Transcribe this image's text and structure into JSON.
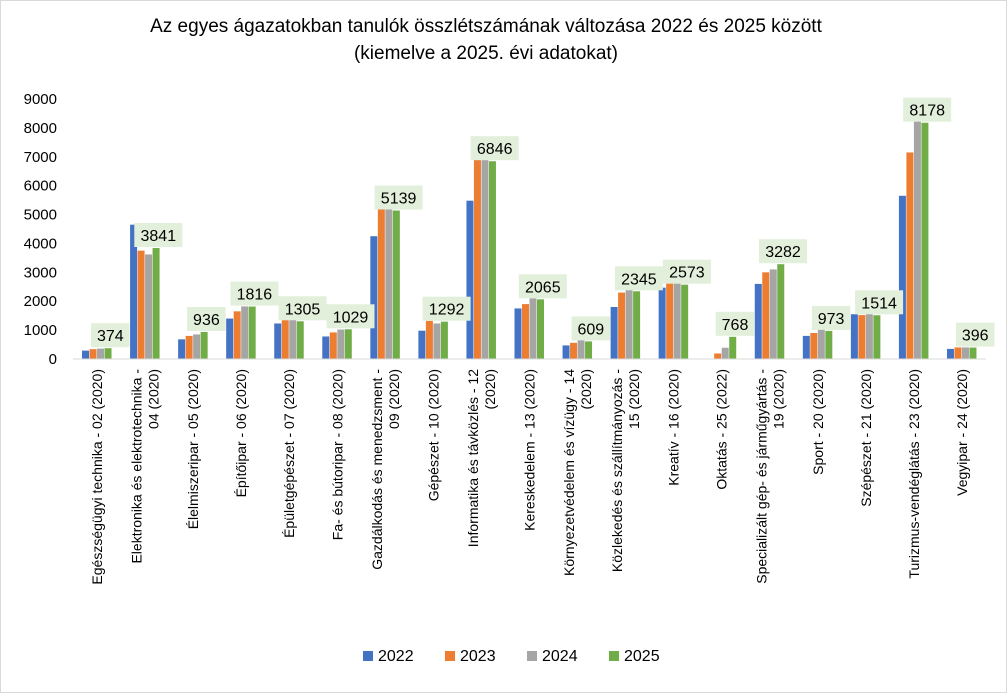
{
  "chart_data": {
    "type": "bar",
    "title": "Az egyes ágazatokban tanulók összlétszámának változása 2022 és 2025 között",
    "subtitle": "(kiemelve a 2025. évi adatokat)",
    "xlabel": "",
    "ylabel": "",
    "ylim": [
      0,
      9000
    ],
    "yticks": [
      "0",
      "1000",
      "2000",
      "3000",
      "4000",
      "5000",
      "6000",
      "7000",
      "8000",
      "9000"
    ],
    "grid": false,
    "legend_position": "bottom",
    "categories": [
      [
        "Egészségügyi technika - 02 (2020)"
      ],
      [
        "Elektronika és elektrotechnika -",
        "04 (2020)"
      ],
      [
        "Élelmiszeripar - 05 (2020)"
      ],
      [
        "Építőipar - 06 (2020)"
      ],
      [
        "Épületgépészet - 07 (2020)"
      ],
      [
        "Fa- és bútoripar - 08 (2020)"
      ],
      [
        "Gazdálkodás és menedzsment -",
        "09 (2020)"
      ],
      [
        "Gépészet - 10 (2020)"
      ],
      [
        "Informatika és távközlés - 12",
        "(2020)"
      ],
      [
        "Kereskedelem - 13 (2020)"
      ],
      [
        "Környezetvédelem és vízügy - 14",
        "(2020)"
      ],
      [
        "Közlekedés és szállítmányozás -",
        "15 (2020)"
      ],
      [
        "Kreatív - 16 (2020)"
      ],
      [
        "Oktatás - 25 (2022)"
      ],
      [
        "Specializált gép- és járműgyártás -",
        "19 (2020)"
      ],
      [
        "Sport - 20 (2020)"
      ],
      [
        "Szépészet - 21 (2020)"
      ],
      [
        "Turizmus-vendéglátás - 23 (2020)"
      ],
      [
        "Vegyipar - 24 (2020)"
      ]
    ],
    "series": [
      {
        "name": "2022",
        "color": "#4472C4",
        "values": [
          290,
          4650,
          680,
          1400,
          1230,
          780,
          4250,
          980,
          5480,
          1750,
          470,
          1800,
          2470,
          0,
          2600,
          800,
          1550,
          5650,
          350
        ]
      },
      {
        "name": "2023",
        "color": "#ED7D31",
        "values": [
          340,
          3750,
          800,
          1650,
          1420,
          920,
          5250,
          1320,
          7050,
          1900,
          560,
          2300,
          2800,
          190,
          3000,
          900,
          1520,
          7150,
          400
        ]
      },
      {
        "name": "2024",
        "color": "#A5A5A5",
        "values": [
          360,
          3620,
          850,
          1820,
          1380,
          1020,
          5350,
          1230,
          7050,
          2100,
          730,
          2420,
          2820,
          390,
          3100,
          1070,
          1720,
          8300,
          400
        ]
      },
      {
        "name": "2025",
        "color": "#70AD47",
        "values": [
          374,
          3841,
          936,
          1816,
          1305,
          1029,
          5139,
          1292,
          6846,
          2065,
          609,
          2345,
          2573,
          768,
          3282,
          973,
          1514,
          8178,
          396
        ]
      }
    ],
    "data_labels": {
      "series": "2025",
      "values": [
        "374",
        "3841",
        "936",
        "1816",
        "1305",
        "1029",
        "5139",
        "1292",
        "6846",
        "2065",
        "609",
        "2345",
        "2573",
        "768",
        "3282",
        "973",
        "1514",
        "8178",
        "396"
      ],
      "background_color": "#E2EFDA"
    }
  }
}
